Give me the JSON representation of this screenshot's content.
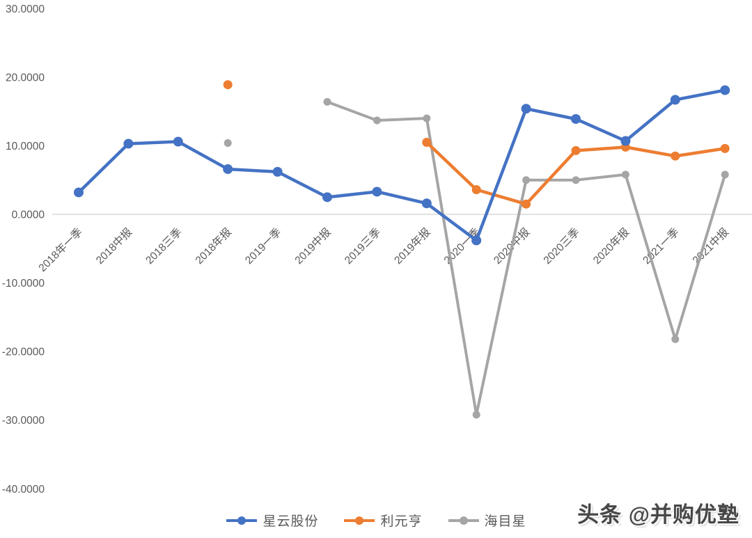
{
  "chart_data": {
    "type": "line",
    "title": "",
    "xlabel": "",
    "ylabel": "",
    "categories": [
      "2018年一季",
      "2018中报",
      "2018三季",
      "2018年报",
      "2019一季",
      "2019中报",
      "2019三季",
      "2019年报",
      "2020一季",
      "2020中报",
      "2020三季",
      "2020年报",
      "2021一季",
      "2021中报"
    ],
    "series": [
      {
        "name": "星云股份",
        "color": "#4472C4",
        "values": [
          3.2,
          10.3,
          10.6,
          6.6,
          6.2,
          2.5,
          3.3,
          1.6,
          -3.8,
          15.4,
          13.9,
          10.7,
          16.7,
          18.1
        ]
      },
      {
        "name": "利元亨",
        "color": "#ED7D31",
        "values": [
          null,
          null,
          null,
          18.9,
          null,
          null,
          null,
          10.5,
          3.6,
          1.5,
          9.3,
          9.8,
          8.5,
          9.6
        ]
      },
      {
        "name": "海目星",
        "color": "#A5A5A5",
        "values": [
          null,
          null,
          null,
          10.4,
          null,
          16.4,
          13.7,
          14.0,
          -29.2,
          5.0,
          5.0,
          5.8,
          -18.2,
          5.8
        ]
      }
    ],
    "ylim": [
      -40,
      30
    ],
    "y_ticks": [
      {
        "value": 30,
        "label": "30.0000"
      },
      {
        "value": 20,
        "label": "20.0000"
      },
      {
        "value": 10,
        "label": "10.0000"
      },
      {
        "value": 0,
        "label": "0.0000"
      },
      {
        "value": -10,
        "label": "-10.0000"
      },
      {
        "value": -20,
        "label": "-20.0000"
      },
      {
        "value": -30,
        "label": "-30.0000"
      },
      {
        "value": -40,
        "label": "-40.0000"
      }
    ],
    "grid": "zero-line-only",
    "legend_position": "bottom",
    "marker": "circle"
  },
  "legend": {
    "items": [
      {
        "label": "星云股份",
        "color": "#4472C4"
      },
      {
        "label": "利元亨",
        "color": "#ED7D31"
      },
      {
        "label": "海目星",
        "color": "#A5A5A5"
      }
    ]
  },
  "watermark": {
    "text": "头条 @并购优塾"
  },
  "colors": {
    "background": "#FFFFFF",
    "axis_text": "#595959",
    "zero_line": "#D9D9D9",
    "watermark_text": "#474747"
  }
}
